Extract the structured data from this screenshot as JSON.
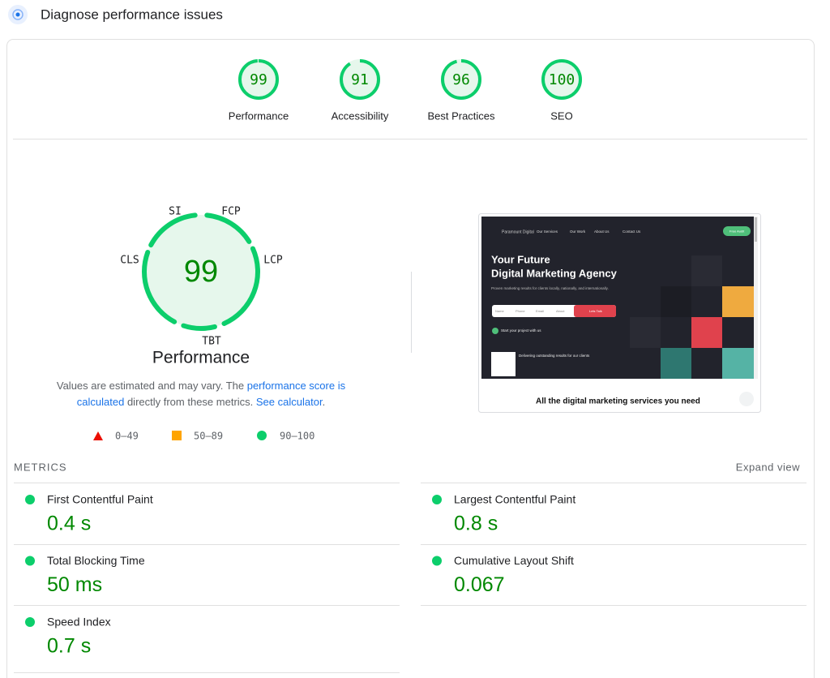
{
  "header": {
    "title": "Diagnose performance issues"
  },
  "scores": [
    {
      "label": "Performance",
      "value": 99
    },
    {
      "label": "Accessibility",
      "value": 91
    },
    {
      "label": "Best Practices",
      "value": 96
    },
    {
      "label": "SEO",
      "value": 100
    }
  ],
  "gauge": {
    "value": 99,
    "label": "Performance",
    "segments": [
      "SI",
      "FCP",
      "LCP",
      "TBT",
      "CLS"
    ]
  },
  "note": {
    "line1": [
      "Values are estimated and may vary. The ",
      "performance score is"
    ],
    "line2": [
      "calculated",
      " directly from these metrics. ",
      "See calculator",
      "."
    ]
  },
  "legend": [
    "0–49",
    "50–89",
    "90–100"
  ],
  "metrics_heading": "METRICS",
  "expand": "Expand view",
  "metrics": [
    {
      "name": "First Contentful Paint",
      "value": "0.4 s"
    },
    {
      "name": "Largest Contentful Paint",
      "value": "0.8 s"
    },
    {
      "name": "Total Blocking Time",
      "value": "50 ms"
    },
    {
      "name": "Cumulative Layout Shift",
      "value": "0.067"
    },
    {
      "name": "Speed Index",
      "value": "0.7 s"
    }
  ],
  "screenshot": {
    "brand": "Paramount Digital",
    "nav": [
      "Our Services",
      "Our Work",
      "About Us",
      "Contact Us"
    ],
    "cta": "Free Audit",
    "headline1": "Your Future",
    "headline2": "Digital Marketing Agency",
    "sub": "Proven marketing results for clients locally, nationally, and internationally.",
    "fields": [
      "Name",
      "Phone",
      "Email",
      "About"
    ],
    "button": "Lets Talk",
    "start": "Start your project with us",
    "clients": "Delivering outstanding results for our clients",
    "footer": "All the digital marketing services you need"
  }
}
